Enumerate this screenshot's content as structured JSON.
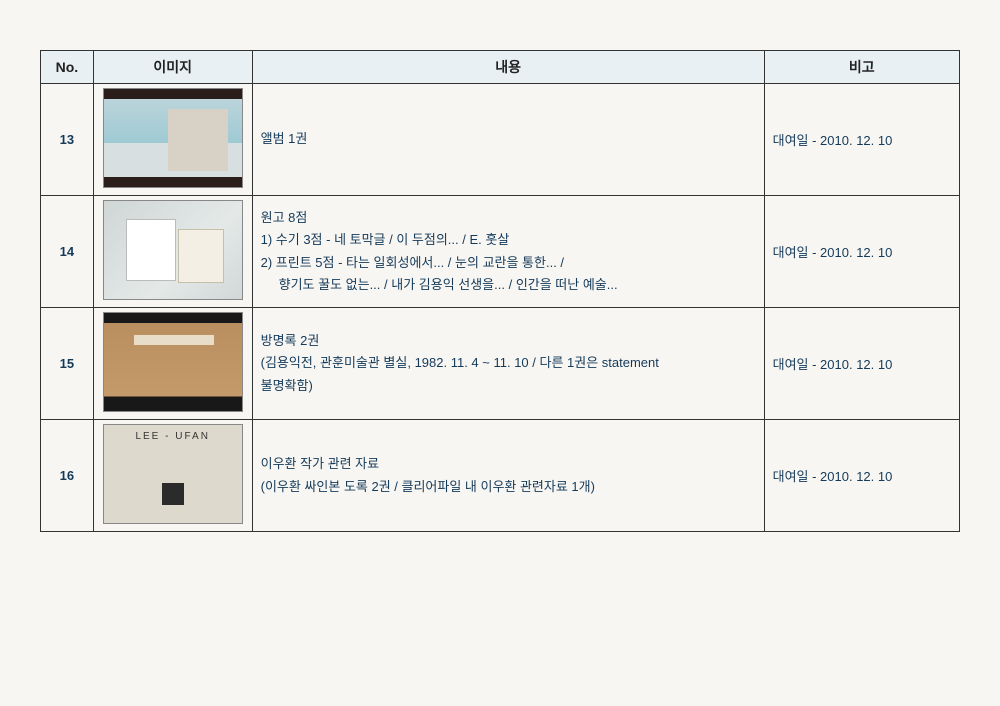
{
  "table": {
    "columns": [
      "No.",
      "이미지",
      "내용",
      "비고"
    ],
    "header_bg": "#e8f0f4",
    "border_color": "#333333",
    "text_color": "#143a5a",
    "rows": [
      {
        "no": "13",
        "thumb_class": "album",
        "content": [
          "앨범 1권"
        ],
        "remark": "대여일 - 2010. 12. 10"
      },
      {
        "no": "14",
        "thumb_class": "pages",
        "content": [
          "원고 8점",
          "1) 수기 3점 - 네 토막글 / 이 두점의... / E. 훗살",
          "2) 프린트 5점 - 타는 일회성에서... / 눈의 교란을 통한... /",
          "    향기도 꿀도 없는... / 내가 김용익 선생을... / 인간을 떠난 예술..."
        ],
        "remark": "대여일 - 2010. 12. 10"
      },
      {
        "no": "15",
        "thumb_class": "guestbook",
        "content": [
          "방명록 2권",
          "(김용익전, 관훈미술관 별실, 1982. 11. 4 ~ 11. 10 / 다른 1권은 statement",
          "불명확함)"
        ],
        "remark": "대여일 - 2010. 12. 10"
      },
      {
        "no": "16",
        "thumb_class": "ufan",
        "content": [
          "이우환 작가 관련 자료",
          "(이우환 싸인본 도록 2권 / 클리어파일 내 이우환 관련자료 1개)"
        ],
        "remark": "대여일 - 2010. 12. 10"
      }
    ]
  }
}
